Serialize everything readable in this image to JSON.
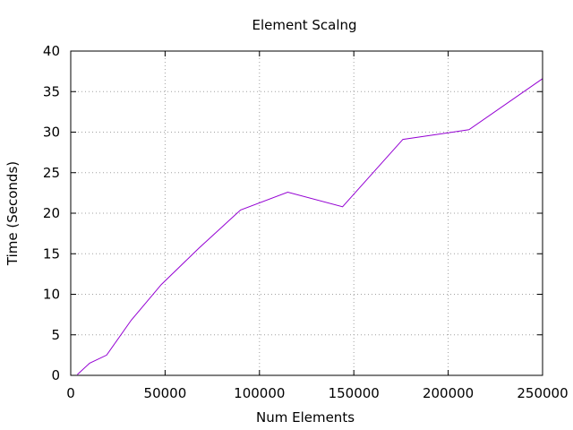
{
  "chart_data": {
    "type": "line",
    "title": "Element Scalng",
    "xlabel": "Num Elements",
    "ylabel": "Time (Seconds)",
    "xlim": [
      0,
      250000
    ],
    "ylim": [
      0,
      40
    ],
    "xticks": [
      0,
      50000,
      100000,
      150000,
      200000,
      250000
    ],
    "yticks": [
      0,
      5,
      10,
      15,
      20,
      25,
      30,
      35,
      40
    ],
    "grid": true,
    "series": [
      {
        "color": "#9400d3",
        "points": [
          [
            3500,
            0.1
          ],
          [
            10000,
            1.5
          ],
          [
            19000,
            2.5
          ],
          [
            32000,
            6.8
          ],
          [
            48000,
            11.2
          ],
          [
            68000,
            15.7
          ],
          [
            90000,
            20.4
          ],
          [
            115000,
            22.6
          ],
          [
            144000,
            20.8
          ],
          [
            176000,
            29.1
          ],
          [
            211000,
            30.3
          ],
          [
            250000,
            36.6
          ]
        ]
      }
    ]
  }
}
